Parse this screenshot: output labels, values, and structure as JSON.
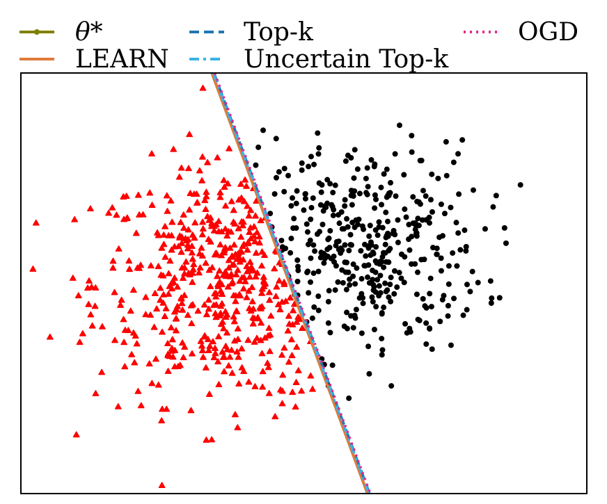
{
  "chart_data": {
    "type": "scatter",
    "title": "",
    "xlabel": "",
    "ylabel": "",
    "xlim": [
      -4.0,
      4.0
    ],
    "ylim": [
      -3.0,
      3.0
    ],
    "grid": false,
    "axes_ticks": false,
    "legend": {
      "placement": "top-outside",
      "columns": 3,
      "entries": [
        {
          "label": "θ*",
          "style": "solid-marker",
          "color": "#808000"
        },
        {
          "label": "Top-k",
          "style": "dashed",
          "color": "#1f77b4"
        },
        {
          "label": "OGD",
          "style": "dotted",
          "color": "#e7298a"
        },
        {
          "label": "LEARN",
          "style": "solid",
          "color": "#e07b39"
        },
        {
          "label": "Uncertain Top-k",
          "style": "dashdot",
          "color": "#3bb2e6"
        }
      ]
    },
    "series": [
      {
        "kind": "points",
        "marker": "triangle",
        "color": "#ff0000",
        "class_mean": [
          -1.0,
          0.0
        ],
        "class_std": 0.85,
        "count": 500,
        "region": "left of boundary"
      },
      {
        "kind": "points",
        "marker": "circle",
        "color": "#000000",
        "class_mean": [
          0.8,
          0.5
        ],
        "class_std": 0.75,
        "count": 400,
        "region": "right of boundary"
      }
    ],
    "decision_boundaries": [
      {
        "name": "θ*",
        "points": [
          [
            -1.3,
            3.0
          ],
          [
            0.9,
            -3.0
          ]
        ],
        "color": "#808000",
        "dash": "solid"
      },
      {
        "name": "LEARN",
        "points": [
          [
            -1.3,
            3.0
          ],
          [
            0.9,
            -3.0
          ]
        ],
        "color": "#e07b39",
        "dash": "solid"
      },
      {
        "name": "Top-k",
        "points": [
          [
            -1.27,
            3.0
          ],
          [
            0.93,
            -3.0
          ]
        ],
        "color": "#1f77b4",
        "dash": "dashed"
      },
      {
        "name": "Uncertain Top-k",
        "points": [
          [
            -1.28,
            3.0
          ],
          [
            0.92,
            -3.0
          ]
        ],
        "color": "#3bb2e6",
        "dash": "dashdot"
      },
      {
        "name": "OGD",
        "points": [
          [
            -1.26,
            3.0
          ],
          [
            0.94,
            -3.0
          ]
        ],
        "color": "#e7298a",
        "dash": "dotted"
      }
    ]
  }
}
